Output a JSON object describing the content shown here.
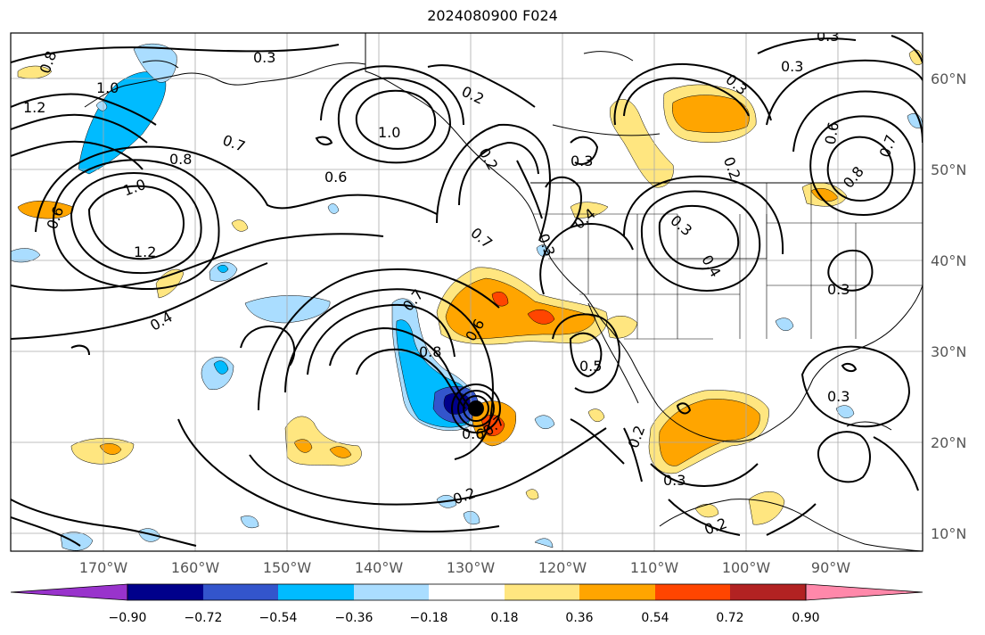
{
  "title": "2024080900 F024",
  "lon_ticks": [
    "170°W",
    "160°W",
    "150°W",
    "140°W",
    "130°W",
    "120°W",
    "110°W",
    "100°W",
    "90°W"
  ],
  "lat_ticks": [
    "60°N",
    "50°N",
    "40°N",
    "30°N",
    "20°N",
    "10°N"
  ],
  "colorbar": {
    "colors": [
      "#9933cc",
      "#00008b",
      "#3355cc",
      "#00bbff",
      "#aaddff",
      "#ffffff",
      "#ffe680",
      "#ffa500",
      "#ff4500",
      "#b22222",
      "#ff88aa"
    ],
    "tick_labels": [
      "−0.90",
      "−0.72",
      "−0.54",
      "−0.36",
      "−0.18",
      "0.18",
      "0.36",
      "0.54",
      "0.72",
      "0.90"
    ]
  },
  "contour_labels": [
    "0.3",
    "0.2",
    "0.3",
    "0.3",
    "0.8",
    "1.0",
    "1.2",
    "1.0",
    "0.7",
    "0.8",
    "1.0",
    "0.6",
    "0.6",
    "1.2",
    "0.4",
    "0.7",
    "0.6",
    "0.8",
    "0.7",
    "0.3",
    "0.4",
    "0.3",
    "0.4",
    "0.3",
    "0.2",
    "0.2",
    "0.6",
    "0.7",
    "0.8",
    "0.3",
    "0.5",
    "0.3",
    "0.2",
    "0.3",
    "0.2",
    "0.3",
    "0.2",
    "0.6",
    "0.7"
  ],
  "colors": {
    "grid": "#aaaaaa",
    "contour": "#000000",
    "coast": "#000000"
  }
}
